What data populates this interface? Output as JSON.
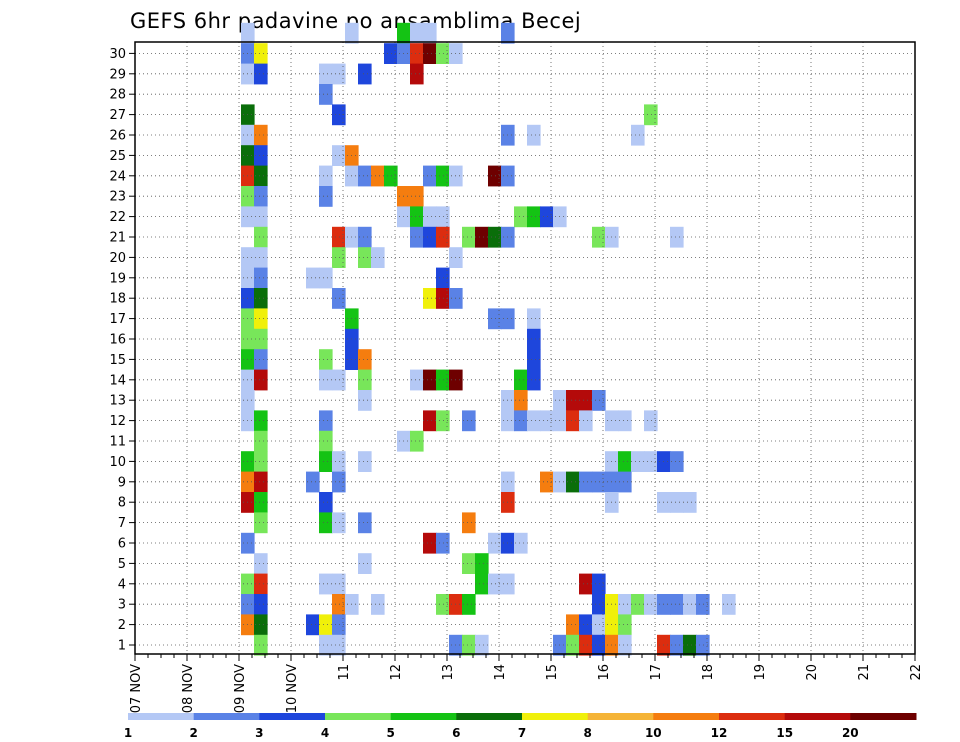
{
  "chart_data": {
    "type": "heatmap",
    "title": "GEFS 6hr padavine po ansamblima Becej",
    "xlabel": "",
    "ylabel": "",
    "x_ticks": [
      "07 NOV",
      "08 NOV",
      "09 NOV",
      "10 NOV",
      "11",
      "12",
      "13",
      "14",
      "15",
      "16",
      "17",
      "18",
      "19",
      "20",
      "21",
      "22"
    ],
    "y_ticks": [
      "1",
      "2",
      "3",
      "4",
      "5",
      "6",
      "7",
      "8",
      "9",
      "10",
      "11",
      "12",
      "13",
      "14",
      "15",
      "16",
      "17",
      "18",
      "19",
      "20",
      "21",
      "22",
      "23",
      "24",
      "25",
      "26",
      "27",
      "28",
      "29",
      "30"
    ],
    "x_range": [
      "07 NOV 00Z",
      "22 NOV 00Z"
    ],
    "y_range": [
      0,
      30
    ],
    "grid": true,
    "colorbar": {
      "labels": [
        "1",
        "2",
        "3",
        "4",
        "5",
        "6",
        "7",
        "8",
        "10",
        "12",
        "15",
        "20"
      ],
      "colors": [
        "#b4c8f5",
        "#5a82e6",
        "#1e46dc",
        "#78e65a",
        "#14c314",
        "#0a6e0a",
        "#f0f00a",
        "#f5b437",
        "#f57d0f",
        "#dc2d0f",
        "#b40a0a",
        "#6e0000"
      ]
    },
    "cells": [
      [
        2,
        30,
        1
      ],
      [
        10,
        30,
        1
      ],
      [
        14,
        30,
        5
      ],
      [
        15,
        30,
        1
      ],
      [
        16,
        30,
        1
      ],
      [
        22,
        30,
        2
      ],
      [
        2,
        29,
        2
      ],
      [
        3,
        29,
        7
      ],
      [
        13,
        29,
        3
      ],
      [
        14,
        29,
        2
      ],
      [
        15,
        29,
        10
      ],
      [
        16,
        29,
        12
      ],
      [
        17,
        29,
        4
      ],
      [
        18,
        29,
        1
      ],
      [
        2,
        28,
        1
      ],
      [
        3,
        28,
        3
      ],
      [
        8,
        28,
        1
      ],
      [
        9,
        28,
        1
      ],
      [
        11,
        28,
        3
      ],
      [
        15,
        28,
        11
      ],
      [
        8,
        27,
        2
      ],
      [
        2,
        26,
        6
      ],
      [
        9,
        26,
        3
      ],
      [
        33,
        26,
        4
      ],
      [
        2,
        25,
        1
      ],
      [
        3,
        25,
        9
      ],
      [
        22,
        25,
        2
      ],
      [
        24,
        25,
        1
      ],
      [
        32,
        25,
        1
      ],
      [
        2,
        24,
        6
      ],
      [
        3,
        24,
        3
      ],
      [
        9,
        24,
        1
      ],
      [
        10,
        24,
        9
      ],
      [
        2,
        23,
        10
      ],
      [
        3,
        23,
        6
      ],
      [
        8,
        23,
        1
      ],
      [
        10,
        23,
        1
      ],
      [
        11,
        23,
        2
      ],
      [
        12,
        23,
        9
      ],
      [
        13,
        23,
        5
      ],
      [
        16,
        23,
        2
      ],
      [
        17,
        23,
        5
      ],
      [
        18,
        23,
        1
      ],
      [
        21,
        23,
        12
      ],
      [
        22,
        23,
        2
      ],
      [
        2,
        22,
        4
      ],
      [
        3,
        22,
        2
      ],
      [
        8,
        22,
        2
      ],
      [
        14,
        22,
        9
      ],
      [
        15,
        22,
        9
      ],
      [
        2,
        21,
        1
      ],
      [
        3,
        21,
        1
      ],
      [
        14,
        21,
        1
      ],
      [
        15,
        21,
        5
      ],
      [
        16,
        21,
        1
      ],
      [
        17,
        21,
        1
      ],
      [
        23,
        21,
        4
      ],
      [
        24,
        21,
        5
      ],
      [
        25,
        21,
        3
      ],
      [
        26,
        21,
        1
      ],
      [
        3,
        20,
        4
      ],
      [
        9,
        20,
        10
      ],
      [
        10,
        20,
        1
      ],
      [
        11,
        20,
        2
      ],
      [
        15,
        20,
        2
      ],
      [
        16,
        20,
        3
      ],
      [
        17,
        20,
        10
      ],
      [
        19,
        20,
        4
      ],
      [
        20,
        20,
        12
      ],
      [
        21,
        20,
        6
      ],
      [
        22,
        20,
        2
      ],
      [
        29,
        20,
        4
      ],
      [
        30,
        20,
        1
      ],
      [
        35,
        20,
        1
      ],
      [
        2,
        19,
        1
      ],
      [
        3,
        19,
        1
      ],
      [
        9,
        19,
        4
      ],
      [
        11,
        19,
        4
      ],
      [
        12,
        19,
        1
      ],
      [
        18,
        19,
        1
      ],
      [
        2,
        18,
        1
      ],
      [
        3,
        18,
        2
      ],
      [
        7,
        18,
        1
      ],
      [
        8,
        18,
        1
      ],
      [
        17,
        18,
        3
      ],
      [
        2,
        17,
        3
      ],
      [
        3,
        17,
        6
      ],
      [
        9,
        17,
        2
      ],
      [
        16,
        17,
        7
      ],
      [
        17,
        17,
        11
      ],
      [
        18,
        17,
        2
      ],
      [
        2,
        16,
        4
      ],
      [
        3,
        16,
        7
      ],
      [
        10,
        16,
        5
      ],
      [
        21,
        16,
        2
      ],
      [
        22,
        16,
        2
      ],
      [
        24,
        16,
        1
      ],
      [
        2,
        15,
        4
      ],
      [
        3,
        15,
        4
      ],
      [
        10,
        15,
        3
      ],
      [
        24,
        15,
        3
      ],
      [
        2,
        14,
        5
      ],
      [
        3,
        14,
        2
      ],
      [
        8,
        14,
        4
      ],
      [
        10,
        14,
        3
      ],
      [
        11,
        14,
        9
      ],
      [
        24,
        14,
        3
      ],
      [
        2,
        13,
        1
      ],
      [
        3,
        13,
        11
      ],
      [
        8,
        13,
        1
      ],
      [
        9,
        13,
        1
      ],
      [
        11,
        13,
        4
      ],
      [
        15,
        13,
        1
      ],
      [
        16,
        13,
        12
      ],
      [
        17,
        13,
        5
      ],
      [
        18,
        13,
        12
      ],
      [
        23,
        13,
        5
      ],
      [
        24,
        13,
        3
      ],
      [
        2,
        12,
        1
      ],
      [
        11,
        12,
        1
      ],
      [
        22,
        12,
        1
      ],
      [
        23,
        12,
        9
      ],
      [
        26,
        12,
        1
      ],
      [
        27,
        12,
        11
      ],
      [
        28,
        12,
        11
      ],
      [
        29,
        12,
        2
      ],
      [
        2,
        11,
        1
      ],
      [
        3,
        11,
        5
      ],
      [
        8,
        11,
        2
      ],
      [
        16,
        11,
        11
      ],
      [
        17,
        11,
        4
      ],
      [
        19,
        11,
        2
      ],
      [
        22,
        11,
        1
      ],
      [
        23,
        11,
        2
      ],
      [
        24,
        11,
        1
      ],
      [
        25,
        11,
        1
      ],
      [
        26,
        11,
        1
      ],
      [
        27,
        11,
        10
      ],
      [
        28,
        11,
        1
      ],
      [
        30,
        11,
        1
      ],
      [
        31,
        11,
        1
      ],
      [
        33,
        11,
        1
      ],
      [
        3,
        10,
        4
      ],
      [
        8,
        10,
        4
      ],
      [
        14,
        10,
        1
      ],
      [
        15,
        10,
        4
      ],
      [
        2,
        9,
        5
      ],
      [
        3,
        9,
        4
      ],
      [
        8,
        9,
        5
      ],
      [
        9,
        9,
        1
      ],
      [
        11,
        9,
        1
      ],
      [
        30,
        9,
        1
      ],
      [
        31,
        9,
        5
      ],
      [
        32,
        9,
        1
      ],
      [
        33,
        9,
        1
      ],
      [
        34,
        9,
        3
      ],
      [
        35,
        9,
        2
      ],
      [
        2,
        8,
        9
      ],
      [
        3,
        8,
        11
      ],
      [
        7,
        8,
        2
      ],
      [
        9,
        8,
        2
      ],
      [
        22,
        8,
        1
      ],
      [
        25,
        8,
        9
      ],
      [
        26,
        8,
        1
      ],
      [
        27,
        8,
        6
      ],
      [
        28,
        8,
        2
      ],
      [
        29,
        8,
        2
      ],
      [
        30,
        8,
        2
      ],
      [
        31,
        8,
        2
      ],
      [
        2,
        7,
        11
      ],
      [
        3,
        7,
        5
      ],
      [
        8,
        7,
        3
      ],
      [
        22,
        7,
        10
      ],
      [
        30,
        7,
        1
      ],
      [
        34,
        7,
        1
      ],
      [
        35,
        7,
        1
      ],
      [
        36,
        7,
        1
      ],
      [
        3,
        6,
        4
      ],
      [
        8,
        6,
        5
      ],
      [
        9,
        6,
        1
      ],
      [
        11,
        6,
        2
      ],
      [
        19,
        6,
        9
      ],
      [
        2,
        5,
        2
      ],
      [
        16,
        5,
        11
      ],
      [
        17,
        5,
        2
      ],
      [
        21,
        5,
        1
      ],
      [
        22,
        5,
        3
      ],
      [
        23,
        5,
        1
      ],
      [
        3,
        4,
        1
      ],
      [
        11,
        4,
        1
      ],
      [
        19,
        4,
        4
      ],
      [
        20,
        4,
        5
      ],
      [
        2,
        3,
        4
      ],
      [
        3,
        3,
        10
      ],
      [
        8,
        3,
        1
      ],
      [
        9,
        3,
        1
      ],
      [
        20,
        3,
        5
      ],
      [
        21,
        3,
        1
      ],
      [
        22,
        3,
        1
      ],
      [
        28,
        3,
        11
      ],
      [
        29,
        3,
        3
      ],
      [
        2,
        2,
        2
      ],
      [
        3,
        2,
        3
      ],
      [
        9,
        2,
        9
      ],
      [
        10,
        2,
        1
      ],
      [
        12,
        2,
        1
      ],
      [
        17,
        2,
        4
      ],
      [
        18,
        2,
        10
      ],
      [
        19,
        2,
        5
      ],
      [
        29,
        2,
        3
      ],
      [
        30,
        2,
        7
      ],
      [
        31,
        2,
        1
      ],
      [
        32,
        2,
        4
      ],
      [
        33,
        2,
        1
      ],
      [
        34,
        2,
        2
      ],
      [
        35,
        2,
        2
      ],
      [
        36,
        2,
        1
      ],
      [
        37,
        2,
        2
      ],
      [
        39,
        2,
        1
      ],
      [
        2,
        1,
        9
      ],
      [
        3,
        1,
        6
      ],
      [
        7,
        1,
        3
      ],
      [
        8,
        1,
        7
      ],
      [
        9,
        1,
        2
      ],
      [
        27,
        1,
        9
      ],
      [
        28,
        1,
        3
      ],
      [
        29,
        1,
        1
      ],
      [
        30,
        1,
        7
      ],
      [
        31,
        1,
        4
      ],
      [
        3,
        0,
        4
      ],
      [
        8,
        0,
        1
      ],
      [
        9,
        0,
        1
      ],
      [
        18,
        0,
        2
      ],
      [
        19,
        0,
        4
      ],
      [
        20,
        0,
        1
      ],
      [
        26,
        0,
        2
      ],
      [
        27,
        0,
        4
      ],
      [
        28,
        0,
        10
      ],
      [
        29,
        0,
        3
      ],
      [
        30,
        0,
        9
      ],
      [
        31,
        0,
        1
      ],
      [
        34,
        0,
        10
      ],
      [
        35,
        0,
        2
      ],
      [
        36,
        0,
        6
      ],
      [
        37,
        0,
        2
      ]
    ]
  }
}
